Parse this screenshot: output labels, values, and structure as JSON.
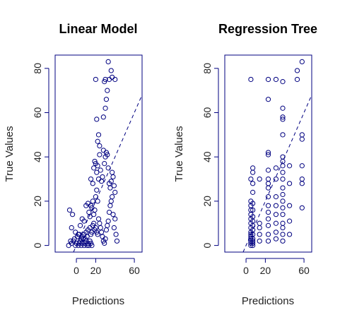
{
  "colors": {
    "axis": "#000080",
    "points": "#000080",
    "line": "#000080",
    "text": "#222222"
  },
  "chart_data": [
    {
      "type": "scatter",
      "title": "Linear Model",
      "xlabel": "Predictions",
      "ylabel": "True Values",
      "xlim": [
        -22,
        68
      ],
      "ylim": [
        -3,
        86
      ],
      "xticks": [
        0,
        20,
        60
      ],
      "yticks": [
        0,
        20,
        40,
        60,
        80
      ],
      "reference_line": {
        "type": "identity",
        "style": "dashed"
      },
      "points": [
        [
          -8,
          0
        ],
        [
          -5,
          1
        ],
        [
          -3,
          2
        ],
        [
          -1,
          0
        ],
        [
          0,
          1
        ],
        [
          2,
          0
        ],
        [
          3,
          1
        ],
        [
          4,
          2
        ],
        [
          5,
          0
        ],
        [
          6,
          1
        ],
        [
          7,
          3
        ],
        [
          8,
          0
        ],
        [
          9,
          1
        ],
        [
          10,
          2
        ],
        [
          11,
          0
        ],
        [
          12,
          1
        ],
        [
          13,
          0
        ],
        [
          14,
          2
        ],
        [
          15,
          1
        ],
        [
          16,
          0
        ],
        [
          -6,
          2
        ],
        [
          -2,
          3
        ],
        [
          1,
          4
        ],
        [
          3,
          5
        ],
        [
          5,
          3
        ],
        [
          6,
          4
        ],
        [
          8,
          5
        ],
        [
          9,
          3
        ],
        [
          10,
          6
        ],
        [
          11,
          4
        ],
        [
          12,
          7
        ],
        [
          14,
          8
        ],
        [
          15,
          5
        ],
        [
          16,
          6
        ],
        [
          17,
          9
        ],
        [
          18,
          10
        ],
        [
          19,
          7
        ],
        [
          20,
          8
        ],
        [
          21,
          6
        ],
        [
          22,
          5
        ],
        [
          -7,
          16
        ],
        [
          -4,
          14
        ],
        [
          -5,
          8
        ],
        [
          -1,
          6
        ],
        [
          2,
          5
        ],
        [
          4,
          9
        ],
        [
          6,
          12
        ],
        [
          8,
          11
        ],
        [
          10,
          18
        ],
        [
          12,
          19
        ],
        [
          13,
          15
        ],
        [
          14,
          13
        ],
        [
          15,
          18
        ],
        [
          16,
          17
        ],
        [
          17,
          20
        ],
        [
          18,
          14
        ],
        [
          19,
          16
        ],
        [
          20,
          22
        ],
        [
          21,
          25
        ],
        [
          22,
          20
        ],
        [
          23,
          12
        ],
        [
          24,
          10
        ],
        [
          25,
          8
        ],
        [
          26,
          6
        ],
        [
          27,
          4
        ],
        [
          28,
          2
        ],
        [
          29,
          1
        ],
        [
          30,
          3
        ],
        [
          31,
          7
        ],
        [
          32,
          9
        ],
        [
          33,
          11
        ],
        [
          34,
          15
        ],
        [
          35,
          18
        ],
        [
          36,
          20
        ],
        [
          37,
          22
        ],
        [
          38,
          14
        ],
        [
          39,
          8
        ],
        [
          40,
          12
        ],
        [
          41,
          5
        ],
        [
          42,
          2
        ],
        [
          15,
          30
        ],
        [
          17,
          28
        ],
        [
          18,
          35
        ],
        [
          19,
          38
        ],
        [
          20,
          37
        ],
        [
          21,
          33
        ],
        [
          22,
          36
        ],
        [
          23,
          30
        ],
        [
          24,
          41
        ],
        [
          25,
          34
        ],
        [
          26,
          29
        ],
        [
          27,
          31
        ],
        [
          28,
          43
        ],
        [
          29,
          37
        ],
        [
          30,
          40
        ],
        [
          31,
          42
        ],
        [
          32,
          41
        ],
        [
          33,
          35
        ],
        [
          34,
          28
        ],
        [
          35,
          26
        ],
        [
          36,
          29
        ],
        [
          37,
          33
        ],
        [
          38,
          31
        ],
        [
          39,
          27
        ],
        [
          40,
          24
        ],
        [
          22,
          47
        ],
        [
          23,
          50
        ],
        [
          24,
          45
        ],
        [
          21,
          57
        ],
        [
          28,
          58
        ],
        [
          30,
          62
        ],
        [
          31,
          66
        ],
        [
          32,
          70
        ],
        [
          29,
          74
        ],
        [
          30,
          75
        ],
        [
          20,
          75
        ],
        [
          33,
          83
        ],
        [
          34,
          75
        ],
        [
          36,
          79
        ],
        [
          37,
          76
        ],
        [
          40,
          75
        ]
      ]
    },
    {
      "type": "scatter",
      "title": "Regression Tree",
      "xlabel": "Predictions",
      "ylabel": "True Values",
      "xlim": [
        -22,
        68
      ],
      "ylim": [
        -3,
        86
      ],
      "xticks": [
        0,
        20,
        60
      ],
      "yticks": [
        0,
        20,
        40,
        60,
        80
      ],
      "reference_line": {
        "type": "identity",
        "style": "dashed"
      },
      "points": [
        [
          5,
          0
        ],
        [
          5,
          1
        ],
        [
          5,
          2
        ],
        [
          5,
          3
        ],
        [
          5,
          4
        ],
        [
          5,
          5
        ],
        [
          5,
          6
        ],
        [
          5,
          8
        ],
        [
          5,
          10
        ],
        [
          5,
          12
        ],
        [
          5,
          14
        ],
        [
          5,
          16
        ],
        [
          5,
          18
        ],
        [
          5,
          20
        ],
        [
          5,
          30
        ],
        [
          5,
          75
        ],
        [
          7,
          0
        ],
        [
          7,
          1
        ],
        [
          7,
          2
        ],
        [
          7,
          3
        ],
        [
          7,
          5
        ],
        [
          7,
          7
        ],
        [
          7,
          9
        ],
        [
          7,
          11
        ],
        [
          7,
          13
        ],
        [
          7,
          16
        ],
        [
          7,
          19
        ],
        [
          7,
          24
        ],
        [
          7,
          28
        ],
        [
          7,
          33
        ],
        [
          7,
          35
        ],
        [
          14,
          2
        ],
        [
          14,
          5
        ],
        [
          14,
          8
        ],
        [
          14,
          10
        ],
        [
          14,
          30
        ],
        [
          23,
          2
        ],
        [
          23,
          5
        ],
        [
          23,
          9
        ],
        [
          23,
          12
        ],
        [
          23,
          15
        ],
        [
          23,
          18
        ],
        [
          23,
          22
        ],
        [
          23,
          26
        ],
        [
          23,
          28
        ],
        [
          23,
          30
        ],
        [
          23,
          34
        ],
        [
          23,
          41
        ],
        [
          23,
          42
        ],
        [
          23,
          66
        ],
        [
          23,
          75
        ],
        [
          31,
          3
        ],
        [
          31,
          6
        ],
        [
          31,
          10
        ],
        [
          31,
          14
        ],
        [
          31,
          18
        ],
        [
          31,
          22
        ],
        [
          31,
          30
        ],
        [
          31,
          35
        ],
        [
          31,
          75
        ],
        [
          38,
          2
        ],
        [
          38,
          5
        ],
        [
          38,
          8
        ],
        [
          38,
          10
        ],
        [
          38,
          14
        ],
        [
          38,
          17
        ],
        [
          38,
          20
        ],
        [
          38,
          23
        ],
        [
          38,
          26
        ],
        [
          38,
          30
        ],
        [
          38,
          33
        ],
        [
          38,
          36
        ],
        [
          38,
          38
        ],
        [
          38,
          40
        ],
        [
          38,
          50
        ],
        [
          38,
          57
        ],
        [
          38,
          58
        ],
        [
          38,
          62
        ],
        [
          38,
          74
        ],
        [
          45,
          5
        ],
        [
          45,
          11
        ],
        [
          45,
          18
        ],
        [
          45,
          28
        ],
        [
          45,
          36
        ],
        [
          53,
          75
        ],
        [
          53,
          79
        ],
        [
          58,
          17
        ],
        [
          58,
          28
        ],
        [
          58,
          30
        ],
        [
          58,
          36
        ],
        [
          58,
          48
        ],
        [
          58,
          50
        ],
        [
          58,
          83
        ]
      ]
    }
  ]
}
